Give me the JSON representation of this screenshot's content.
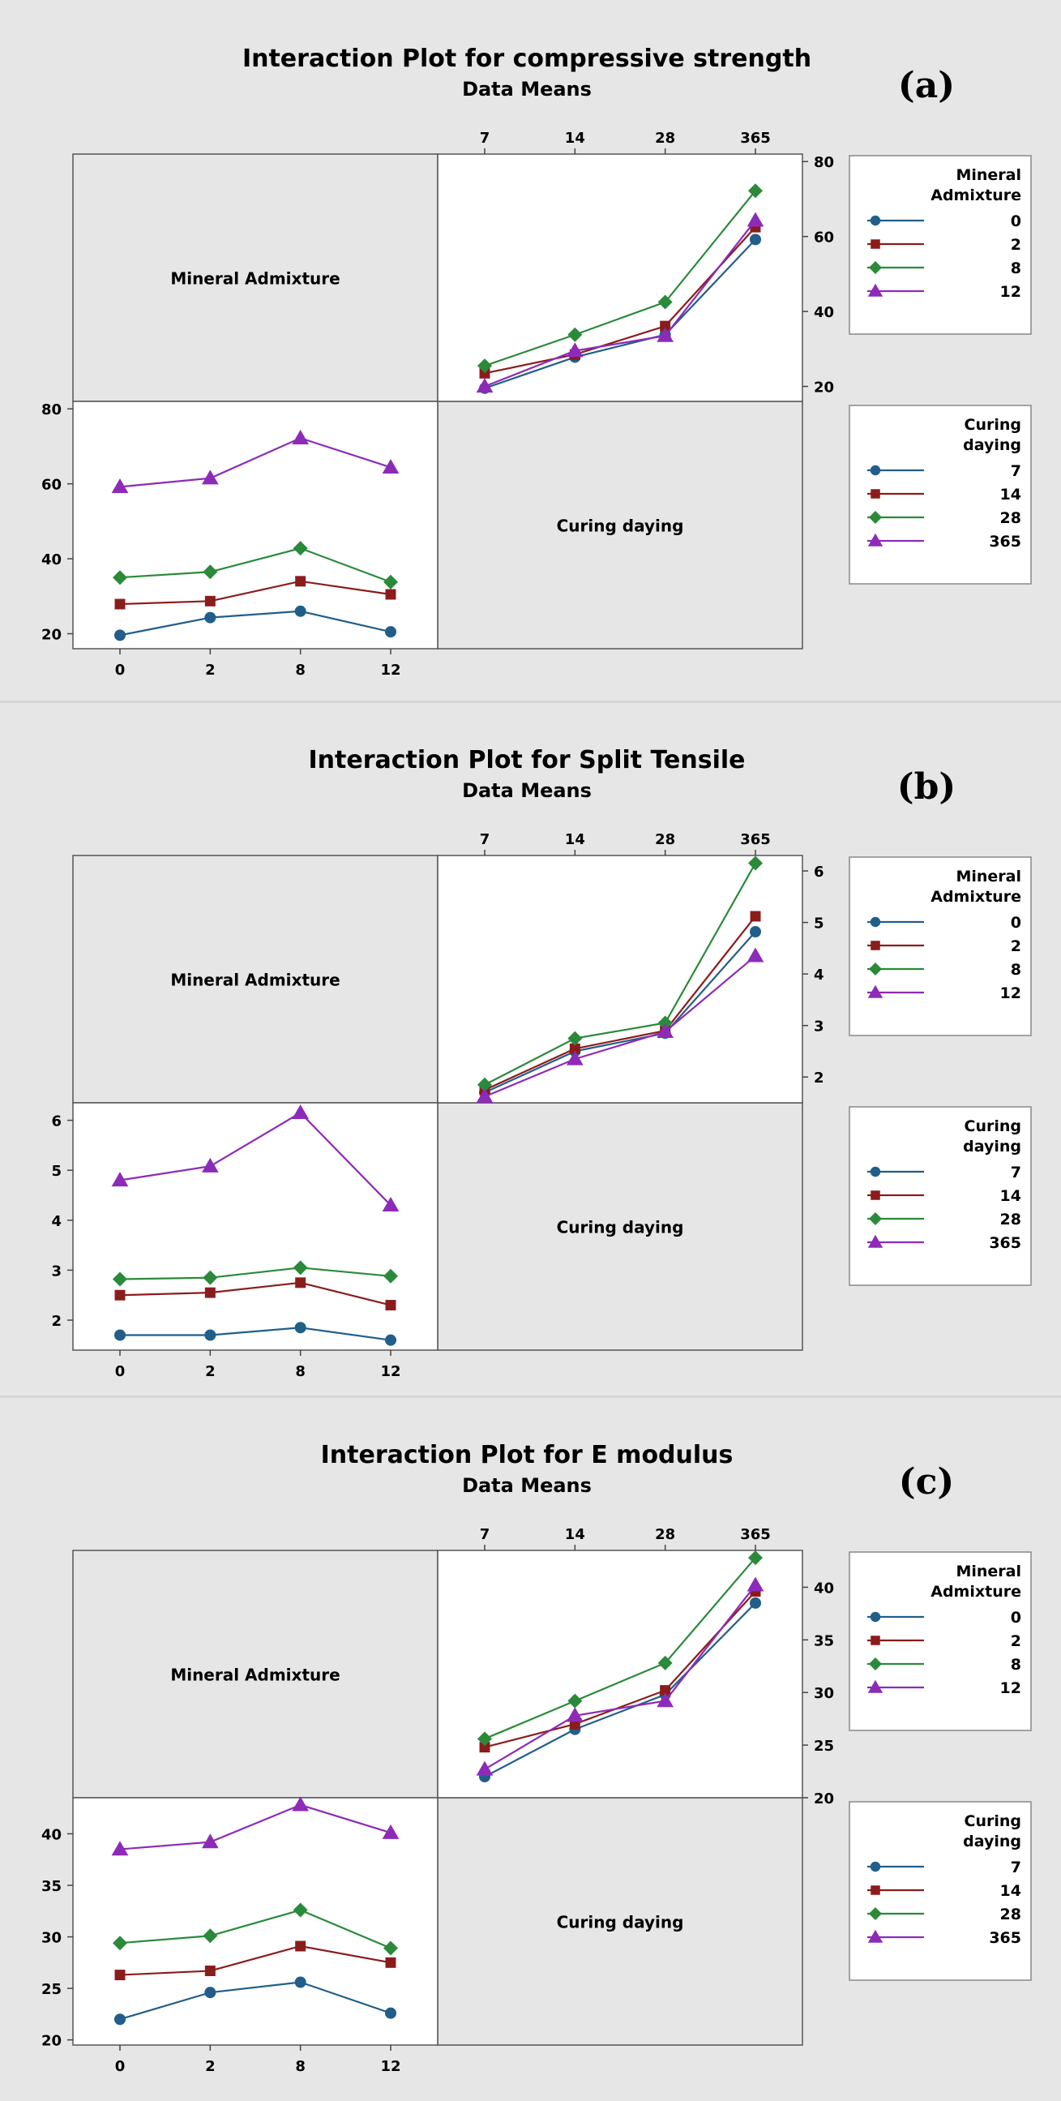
{
  "colors": {
    "s0": "#215e8a",
    "s1": "#8b1c1c",
    "s2": "#2a8a3a",
    "s3": "#8d2bb8",
    "panel_bg": "#e6e6e6",
    "plot_bg": "#ffffff"
  },
  "chart_data": [
    {
      "type": "line",
      "label": "(a)",
      "title": "Interaction Plot for compressive strength",
      "subtitle": "Data Means",
      "diag_labels": [
        "Mineral Admixture",
        "Curing daying"
      ],
      "top_panel": {
        "x_categories": [
          "7",
          "14",
          "28",
          "365"
        ],
        "yticks": [
          "20",
          "40",
          "60",
          "80"
        ],
        "ylim": [
          16,
          82
        ],
        "legend_title": [
          "Mineral",
          "Admixture"
        ],
        "series": [
          {
            "name": "0",
            "marker": "circle",
            "values": [
              19.5,
              27.8,
              33.8,
              59.2
            ]
          },
          {
            "name": "2",
            "marker": "square",
            "values": [
              23.5,
              28.5,
              36.1,
              62.5
            ]
          },
          {
            "name": "8",
            "marker": "diamond",
            "values": [
              25.5,
              33.8,
              42.5,
              72.2
            ]
          },
          {
            "name": "12",
            "marker": "triangle",
            "values": [
              20.0,
              29.5,
              33.5,
              64.3
            ]
          }
        ]
      },
      "bottom_panel": {
        "x_categories": [
          "0",
          "2",
          "8",
          "12"
        ],
        "yticks": [
          "20",
          "40",
          "60",
          "80"
        ],
        "ylim": [
          16,
          82
        ],
        "legend_title": [
          "Curing",
          "daying"
        ],
        "series": [
          {
            "name": "7",
            "marker": "circle",
            "values": [
              19.6,
              24.3,
              26.0,
              20.5
            ]
          },
          {
            "name": "14",
            "marker": "square",
            "values": [
              27.9,
              28.7,
              34.0,
              30.5
            ]
          },
          {
            "name": "28",
            "marker": "diamond",
            "values": [
              35.0,
              36.5,
              42.8,
              33.8
            ]
          },
          {
            "name": "365",
            "marker": "triangle",
            "values": [
              59.2,
              61.5,
              72.2,
              64.4
            ]
          }
        ]
      }
    },
    {
      "type": "line",
      "label": "(b)",
      "title": "Interaction Plot for Split Tensile",
      "subtitle": "Data Means",
      "diag_labels": [
        "Mineral Admixture",
        "Curing daying"
      ],
      "top_panel": {
        "x_categories": [
          "7",
          "14",
          "28",
          "365"
        ],
        "yticks": [
          "2",
          "3",
          "4",
          "5",
          "6"
        ],
        "ylim": [
          1.5,
          6.3
        ],
        "legend_title": [
          "Mineral",
          "Admixture"
        ],
        "series": [
          {
            "name": "0",
            "marker": "circle",
            "values": [
              1.7,
              2.5,
              2.85,
              4.82
            ]
          },
          {
            "name": "2",
            "marker": "square",
            "values": [
              1.75,
              2.55,
              2.9,
              5.12
            ]
          },
          {
            "name": "8",
            "marker": "diamond",
            "values": [
              1.85,
              2.75,
              3.05,
              6.15
            ]
          },
          {
            "name": "12",
            "marker": "triangle",
            "values": [
              1.62,
              2.35,
              2.88,
              4.35
            ]
          }
        ]
      },
      "bottom_panel": {
        "x_categories": [
          "0",
          "2",
          "8",
          "12"
        ],
        "yticks": [
          "2",
          "3",
          "4",
          "5",
          "6"
        ],
        "ylim": [
          1.4,
          6.35
        ],
        "legend_title": [
          "Curing",
          "daying"
        ],
        "series": [
          {
            "name": "7",
            "marker": "circle",
            "values": [
              1.7,
              1.7,
              1.85,
              1.6
            ]
          },
          {
            "name": "14",
            "marker": "square",
            "values": [
              2.5,
              2.55,
              2.75,
              2.3
            ]
          },
          {
            "name": "28",
            "marker": "diamond",
            "values": [
              2.82,
              2.85,
              3.05,
              2.88
            ]
          },
          {
            "name": "365",
            "marker": "triangle",
            "values": [
              4.8,
              5.08,
              6.15,
              4.3
            ]
          }
        ]
      }
    },
    {
      "type": "line",
      "label": "(c)",
      "title": "Interaction Plot for E modulus",
      "subtitle": "Data Means",
      "diag_labels": [
        "Mineral Admixture",
        "Curing daying"
      ],
      "top_panel": {
        "x_categories": [
          "7",
          "14",
          "28",
          "365"
        ],
        "yticks": [
          "20",
          "25",
          "30",
          "35",
          "40"
        ],
        "ylim": [
          20,
          43.5
        ],
        "legend_title": [
          "Mineral",
          "Admixture"
        ],
        "series": [
          {
            "name": "0",
            "marker": "circle",
            "values": [
              22.0,
              26.5,
              29.8,
              38.5
            ]
          },
          {
            "name": "2",
            "marker": "square",
            "values": [
              24.8,
              27.0,
              30.2,
              39.6
            ]
          },
          {
            "name": "8",
            "marker": "diamond",
            "values": [
              25.6,
              29.2,
              32.8,
              42.8
            ]
          },
          {
            "name": "12",
            "marker": "triangle",
            "values": [
              22.7,
              27.8,
              29.2,
              40.2
            ]
          }
        ]
      },
      "bottom_panel": {
        "x_categories": [
          "0",
          "2",
          "8",
          "12"
        ],
        "yticks": [
          "20",
          "25",
          "30",
          "35",
          "40"
        ],
        "ylim": [
          19.5,
          43.5
        ],
        "legend_title": [
          "Curing",
          "daying"
        ],
        "series": [
          {
            "name": "7",
            "marker": "circle",
            "values": [
              22.0,
              24.6,
              25.6,
              22.6
            ]
          },
          {
            "name": "14",
            "marker": "square",
            "values": [
              26.3,
              26.7,
              29.1,
              27.5
            ]
          },
          {
            "name": "28",
            "marker": "diamond",
            "values": [
              29.4,
              30.1,
              32.6,
              28.9
            ]
          },
          {
            "name": "365",
            "marker": "triangle",
            "values": [
              38.5,
              39.2,
              42.8,
              40.1
            ]
          }
        ]
      }
    }
  ]
}
